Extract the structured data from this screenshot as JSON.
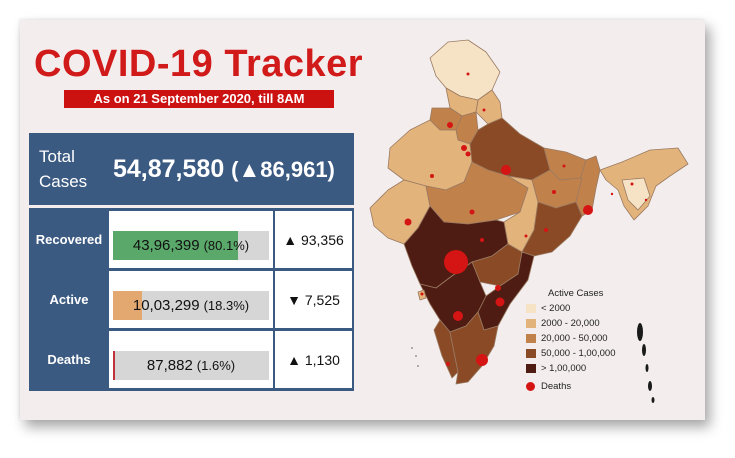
{
  "header": {
    "title": "COVID-19 Tracker",
    "subtitle": "As on 21 September 2020, till 8AM"
  },
  "total": {
    "label": "Total\nCases",
    "value": "54,87,580",
    "delta": "(▲86,961)"
  },
  "chart_data": {
    "type": "bar",
    "categories": [
      "Recovered",
      "Active",
      "Deaths"
    ],
    "values": [
      4396399,
      1003299,
      87882
    ],
    "value_labels": [
      "43,96,399",
      "10,03,299",
      "87,882"
    ],
    "percent_labels": [
      "(80.1%)",
      "(18.3%)",
      "(1.6%)"
    ],
    "percent_values": [
      80.1,
      18.3,
      1.6
    ],
    "delta_labels": [
      "▲ 93,356",
      "▼ 7,525",
      "▲ 1,130"
    ],
    "bar_colors": [
      "#5aa86a",
      "#e2a870",
      "#c0313a"
    ],
    "track_color": "#d6d6d6"
  },
  "map_legend": {
    "title": "Active Cases",
    "items": [
      {
        "label": "< 2000",
        "color": "#f6e3c6"
      },
      {
        "label": "2000 - 20,000",
        "color": "#e3b37c"
      },
      {
        "label": "20,000 - 50,000",
        "color": "#c1814b"
      },
      {
        "label": "50,000 - 1,00,000",
        "color": "#8a4a25"
      },
      {
        "label": "> 1,00,000",
        "color": "#4e1c12"
      }
    ],
    "deaths_label": "Deaths",
    "deaths_color": "#d51414"
  },
  "colors": {
    "background": "#f3eeed",
    "title_red": "#d11a1a",
    "panel_blue": "#3b5a82"
  }
}
